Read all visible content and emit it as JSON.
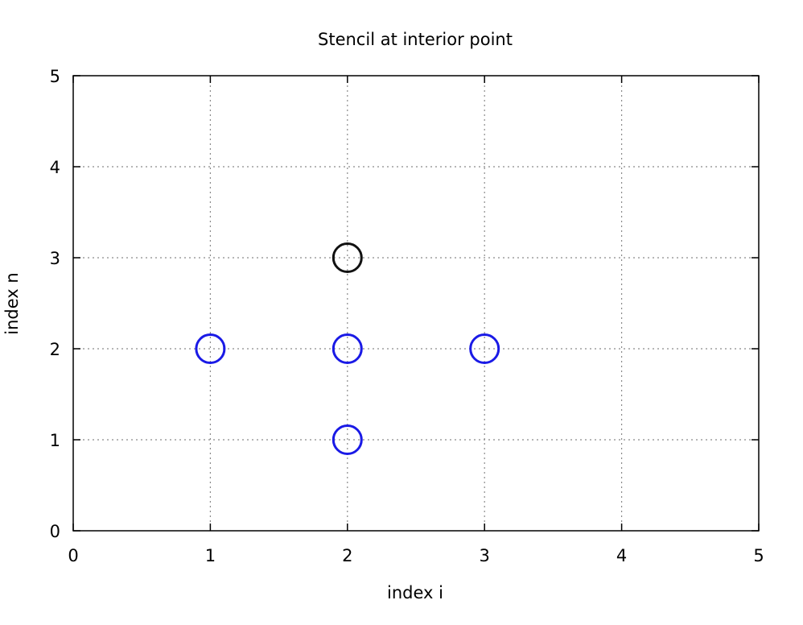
{
  "chart_data": {
    "type": "scatter",
    "title": "Stencil at interior point",
    "xlabel": "index i",
    "ylabel": "index n",
    "xlim": [
      0,
      5
    ],
    "ylim": [
      0,
      5
    ],
    "xticks": [
      "0",
      "1",
      "2",
      "3",
      "4",
      "5"
    ],
    "yticks": [
      "0",
      "1",
      "2",
      "3",
      "4",
      "5"
    ],
    "grid": true,
    "marker": "open-circle",
    "series": [
      {
        "color": "#1a1ae6",
        "points": [
          {
            "x": 1,
            "y": 2
          },
          {
            "x": 2,
            "y": 2
          },
          {
            "x": 3,
            "y": 2
          },
          {
            "x": 2,
            "y": 1
          }
        ]
      },
      {
        "color": "#111111",
        "points": [
          {
            "x": 2,
            "y": 3
          }
        ]
      }
    ]
  }
}
